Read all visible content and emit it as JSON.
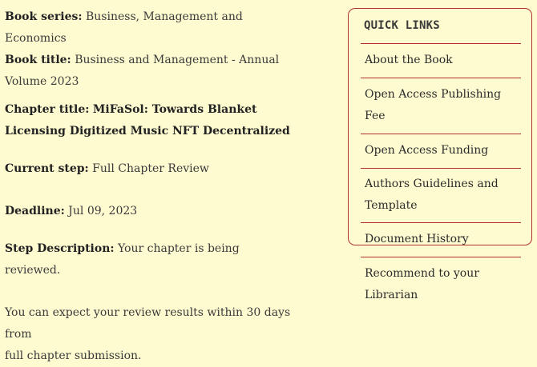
{
  "chapter": {
    "book_series_label": "Book series:",
    "book_series": "Business, Management and Economics",
    "book_title_label": "Book title:",
    "book_title_line1": "Business and Management - Annual",
    "book_title_line2": "Volume 2023",
    "chapter_title_label": "Chapter title:",
    "chapter_title_line1": "MiFaSol: Towards Blanket",
    "chapter_title_line2": "Licensing Digitized Music NFT Decentralized",
    "current_step_label": "Current step:",
    "current_step": "Full Chapter Review",
    "deadline_label": "Deadline:",
    "deadline": "Jul 09, 2023",
    "step_description_label": "Step Description:",
    "step_description": "Your chapter is being reviewed.",
    "expectation_line1": "You can expect your review results within 30 days from",
    "expectation_line2": "full chapter submission."
  },
  "sidebar": {
    "title": "QUICK LINKS",
    "items": [
      {
        "label": "About the Book"
      },
      {
        "label": "Open Access Publishing Fee"
      },
      {
        "label": "Open Access Funding"
      },
      {
        "label_line1": "Authors Guidelines and",
        "label_line2": "Template"
      },
      {
        "label": "Document History"
      },
      {
        "label": "Recommend to your Librarian"
      }
    ]
  },
  "colors": {
    "background": "#fffbd0",
    "accent_border": "#b03030",
    "text": "#2b2b2b"
  }
}
